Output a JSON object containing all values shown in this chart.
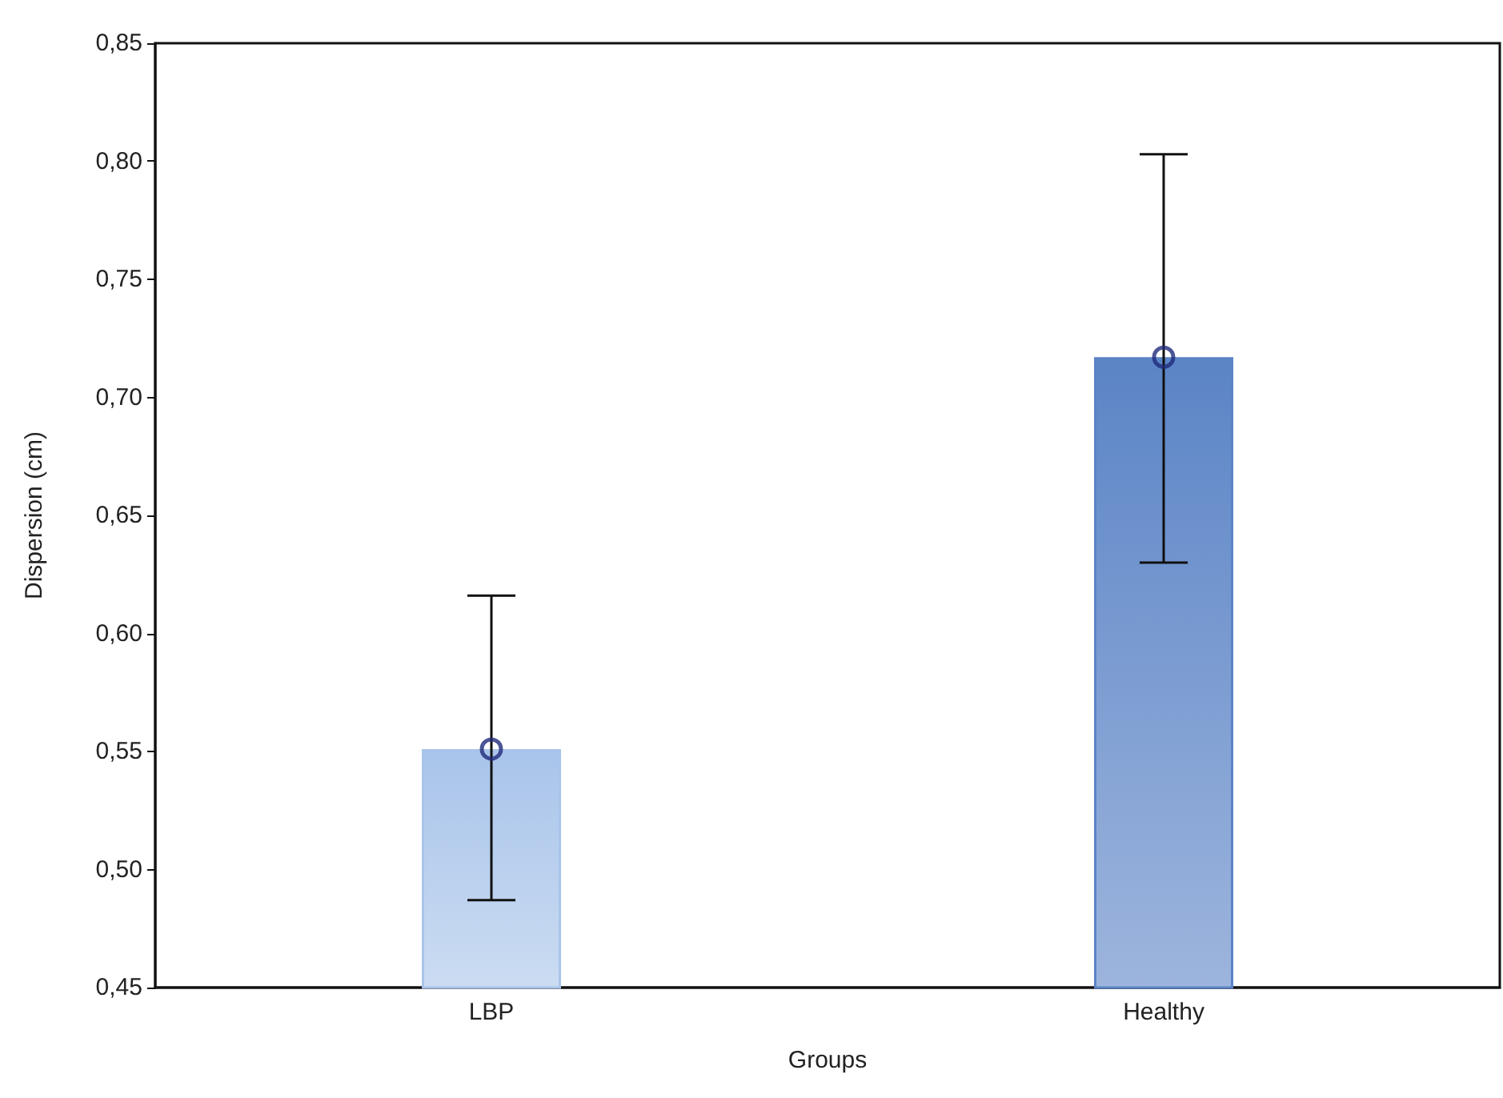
{
  "chart_data": {
    "type": "bar",
    "xlabel": "Groups",
    "ylabel": "Dispersion (cm)",
    "categories": [
      "LBP",
      "Healthy"
    ],
    "series": [
      {
        "colors": [
          "#a9c4ea",
          "#5b84c6"
        ],
        "values": [
          0.551,
          0.717
        ],
        "errors": [
          [
            0.487,
            0.616
          ],
          [
            0.63,
            0.803
          ]
        ]
      },
      {
        "type": "scatter",
        "x": [
          "LBP",
          "Healthy"
        ],
        "color": "#1f2a7a",
        "marker": "circle",
        "values": [
          0.551,
          0.717
        ]
      }
    ],
    "ylim": [
      0.45,
      0.85
    ],
    "yticks": [
      {
        "value": 0.45,
        "label": "0,45"
      },
      {
        "value": 0.5,
        "label": "0,50"
      },
      {
        "value": 0.55,
        "label": "0,55"
      },
      {
        "value": 0.6,
        "label": "0,60"
      },
      {
        "value": 0.65,
        "label": "0,65"
      },
      {
        "value": 0.7,
        "label": "0,70"
      },
      {
        "value": 0.75,
        "label": "0,75"
      },
      {
        "value": 0.8,
        "label": "0,80"
      },
      {
        "value": 0.85,
        "label": "0,85"
      }
    ],
    "grid": false
  }
}
